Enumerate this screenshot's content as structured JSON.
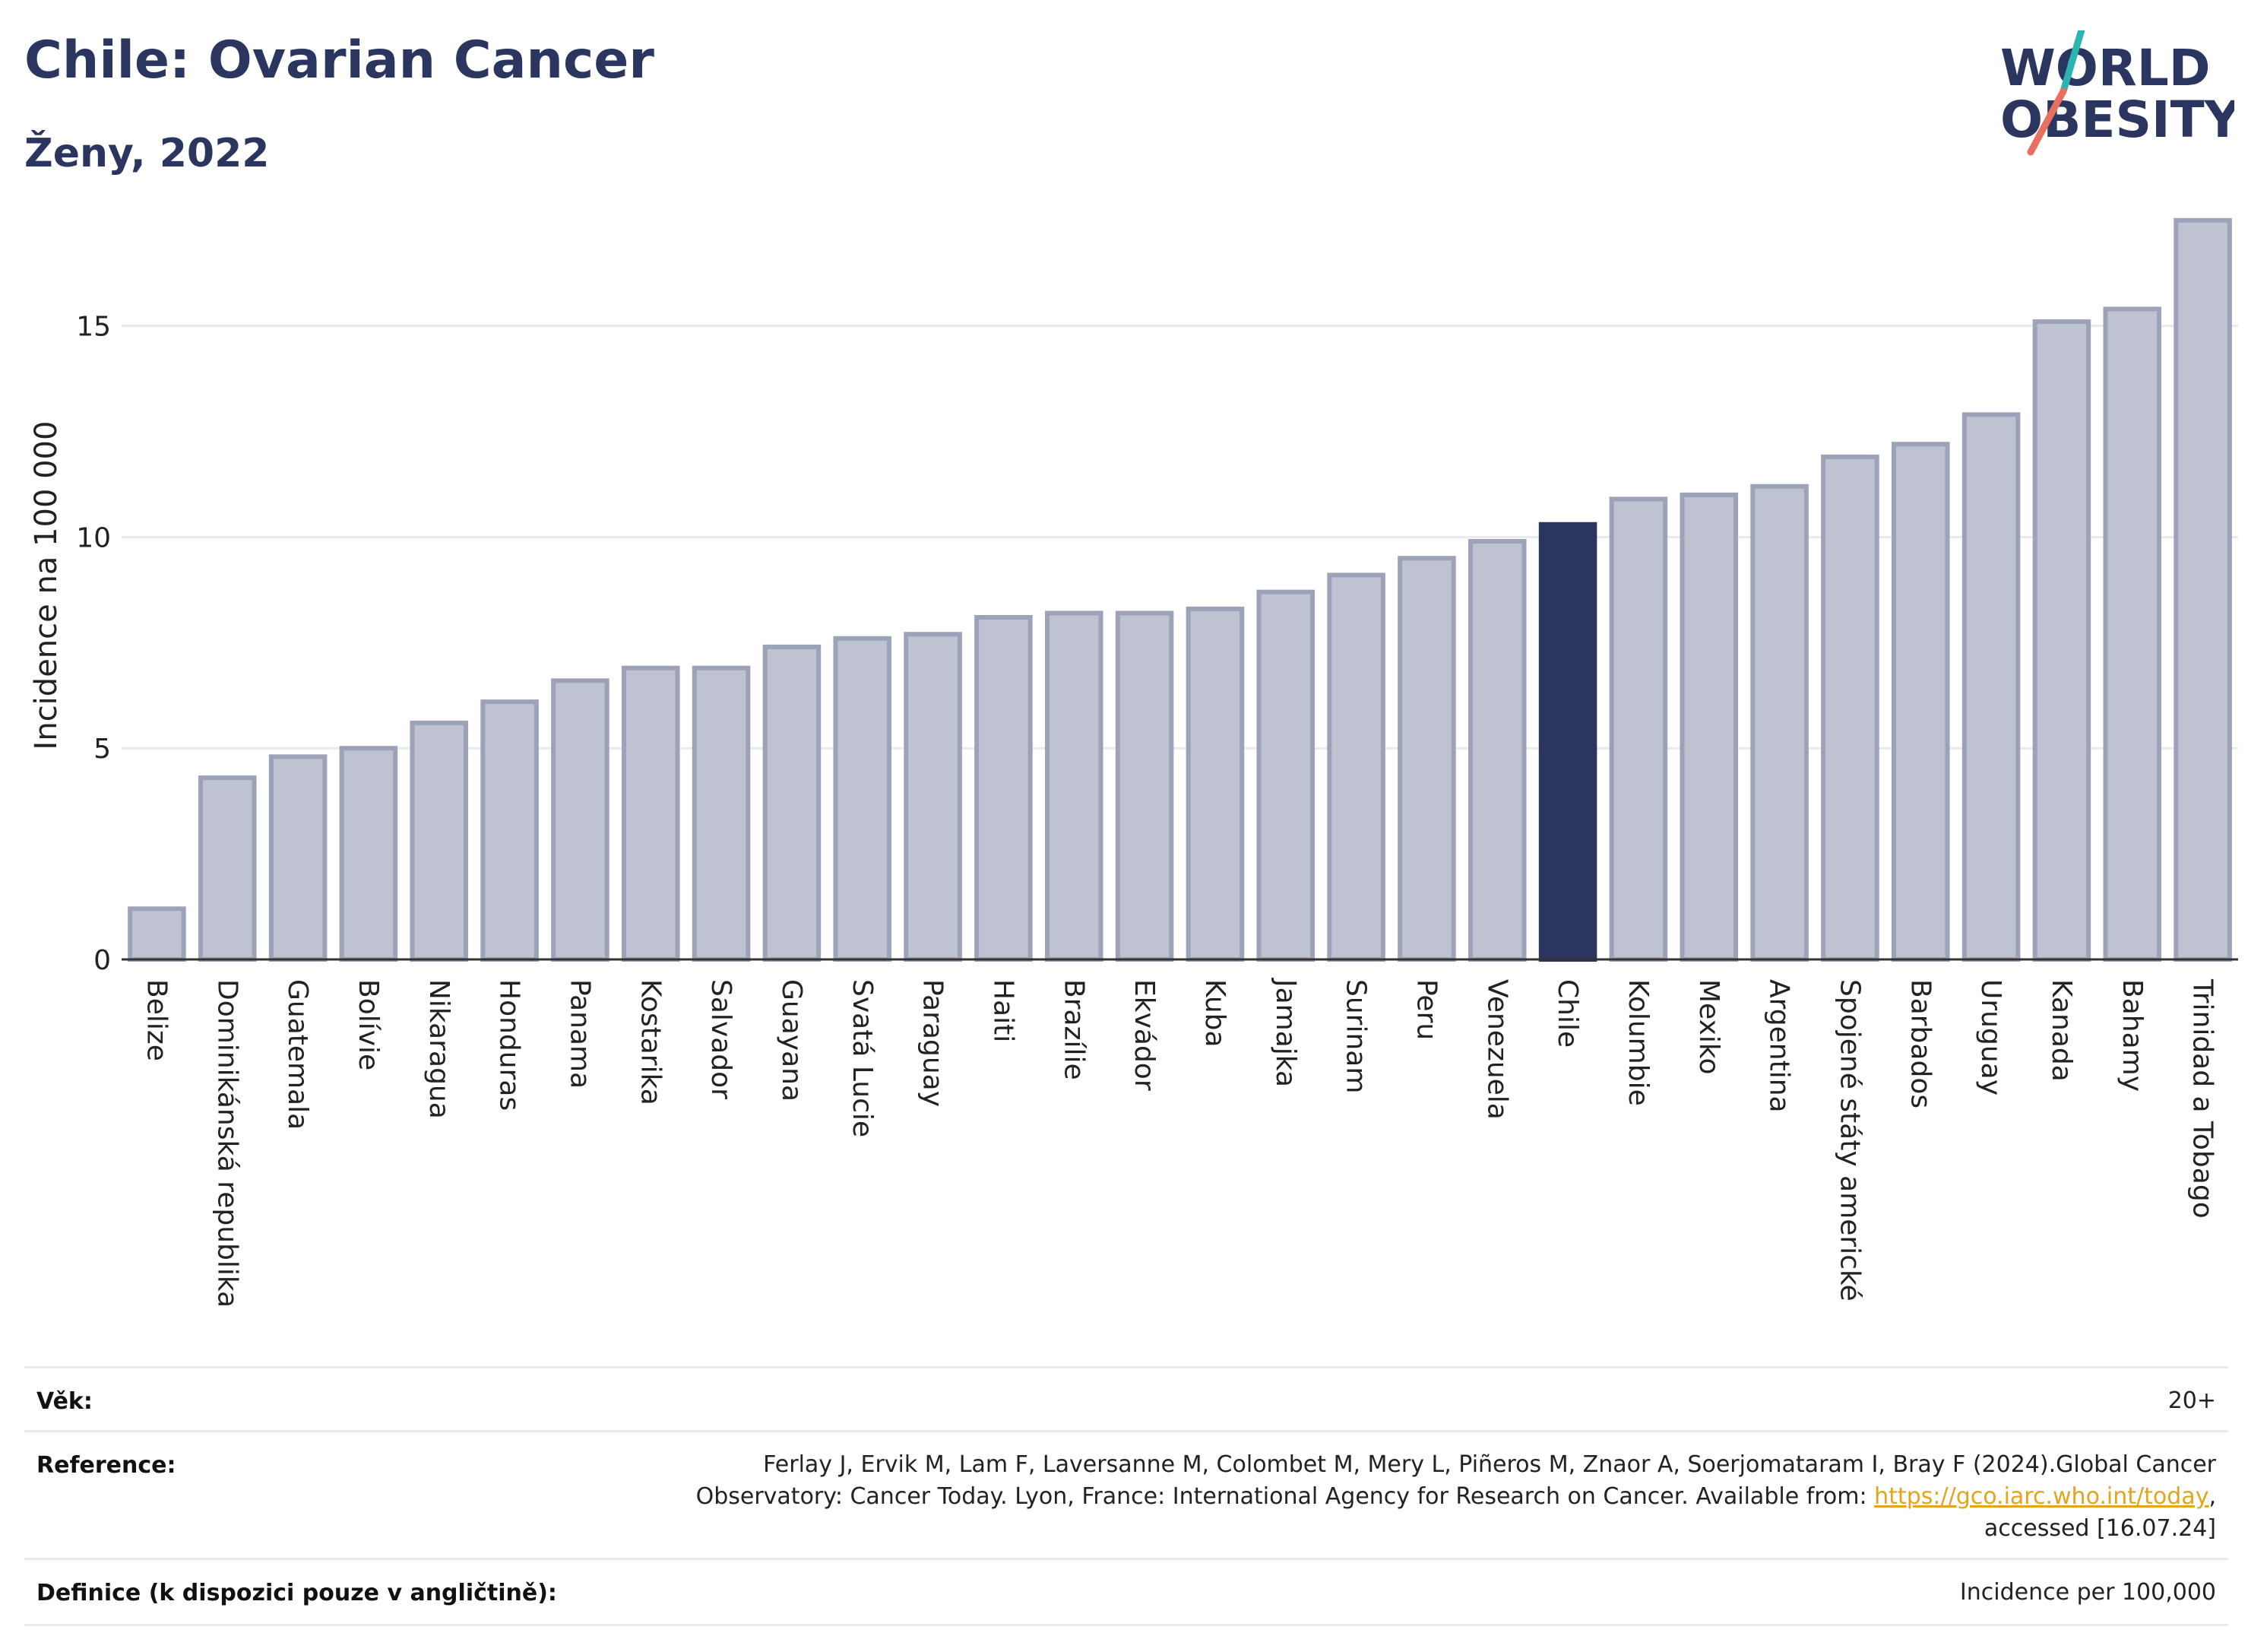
{
  "header": {
    "title": "Chile: Ovarian Cancer",
    "subtitle": "Ženy, 2022",
    "logo_line1": "WORLD",
    "logo_line2": "OBESITY"
  },
  "colors": {
    "highlight": "#2a3560",
    "bar": "#bfc3d1",
    "bar_border": "#9ca2b8",
    "title": "#2a3560",
    "link": "#e3a51a",
    "logo_teal": "#2bb5b0",
    "logo_red": "#e8705e"
  },
  "chart_data": {
    "type": "bar",
    "ylabel": "Incidence na 100 000",
    "xlabel": "",
    "ylim": [
      0,
      18
    ],
    "yticks": [
      0,
      5,
      10,
      15
    ],
    "grid": true,
    "highlight": "Chile",
    "categories": [
      "Belize",
      "Dominikánská republika",
      "Guatemala",
      "Bolívie",
      "Nikaragua",
      "Honduras",
      "Panama",
      "Kostarika",
      "Salvador",
      "Guayana",
      "Svatá Lucie",
      "Paraguay",
      "Haiti",
      "Brazílie",
      "Ekvádor",
      "Kuba",
      "Jamajka",
      "Surinam",
      "Peru",
      "Venezuela",
      "Chile",
      "Kolumbie",
      "Mexiko",
      "Argentina",
      "Spojené státy americké",
      "Barbados",
      "Uruguay",
      "Kanada",
      "Bahamy",
      "Trinidad a Tobago"
    ],
    "values": [
      1.2,
      4.3,
      4.8,
      5.0,
      5.6,
      6.1,
      6.6,
      6.9,
      6.9,
      7.4,
      7.6,
      7.7,
      8.1,
      8.2,
      8.2,
      8.3,
      8.7,
      9.1,
      9.5,
      9.9,
      10.3,
      10.9,
      11.0,
      11.2,
      11.9,
      12.2,
      12.9,
      15.1,
      15.4,
      17.5
    ]
  },
  "footer": {
    "age_label": "Věk:",
    "age_value": "20+",
    "reference_label": "Reference:",
    "reference_line1": "Ferlay J, Ervik M, Lam F, Laversanne M, Colombet M, Mery L, Piñeros M, Znaor A, Soerjomataram I, Bray F (2024).Global Cancer",
    "reference_line2": "Observatory: Cancer Today. Lyon, France: International Agency for Research on Cancer. Available from: ",
    "reference_link": "https://gco.iarc.who.int/today",
    "reference_line2_end": ",",
    "reference_line3": "accessed [16.07.24]",
    "definition_label": "Definice (k dispozici pouze v angličtině):",
    "definition_value": "Incidence per 100,000"
  }
}
